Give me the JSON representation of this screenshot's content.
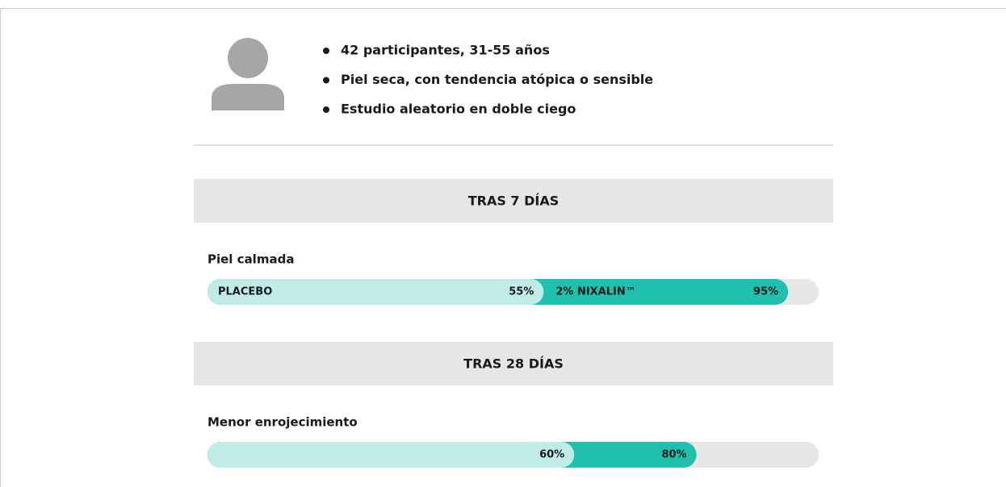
{
  "header": {
    "bullets": [
      "42 participantes, 31-55 años",
      "Piel seca, con tendencia atópica o sensible",
      "Estudio aleatorio en doble ciego"
    ]
  },
  "sections": [
    {
      "title": "TRAS 7 DÍAS",
      "label": "Piel calmada",
      "xlim": [
        0,
        100
      ],
      "series": [
        {
          "name": "PLACEBO",
          "color": "#bfece6",
          "value": 55,
          "value_label": "55%"
        },
        {
          "name": "2% NIXALIN™",
          "color": "#1ec0ae",
          "value": 95,
          "value_label": "95%"
        }
      ]
    },
    {
      "title": "TRAS 28 DÍAS",
      "label": "Menor enrojecimiento",
      "xlim": [
        0,
        100
      ],
      "series": [
        {
          "color": "#bfece6",
          "value": 60,
          "value_label": "60%"
        },
        {
          "color": "#1ec0ae",
          "value": 80,
          "value_label": "80%"
        }
      ]
    }
  ]
}
